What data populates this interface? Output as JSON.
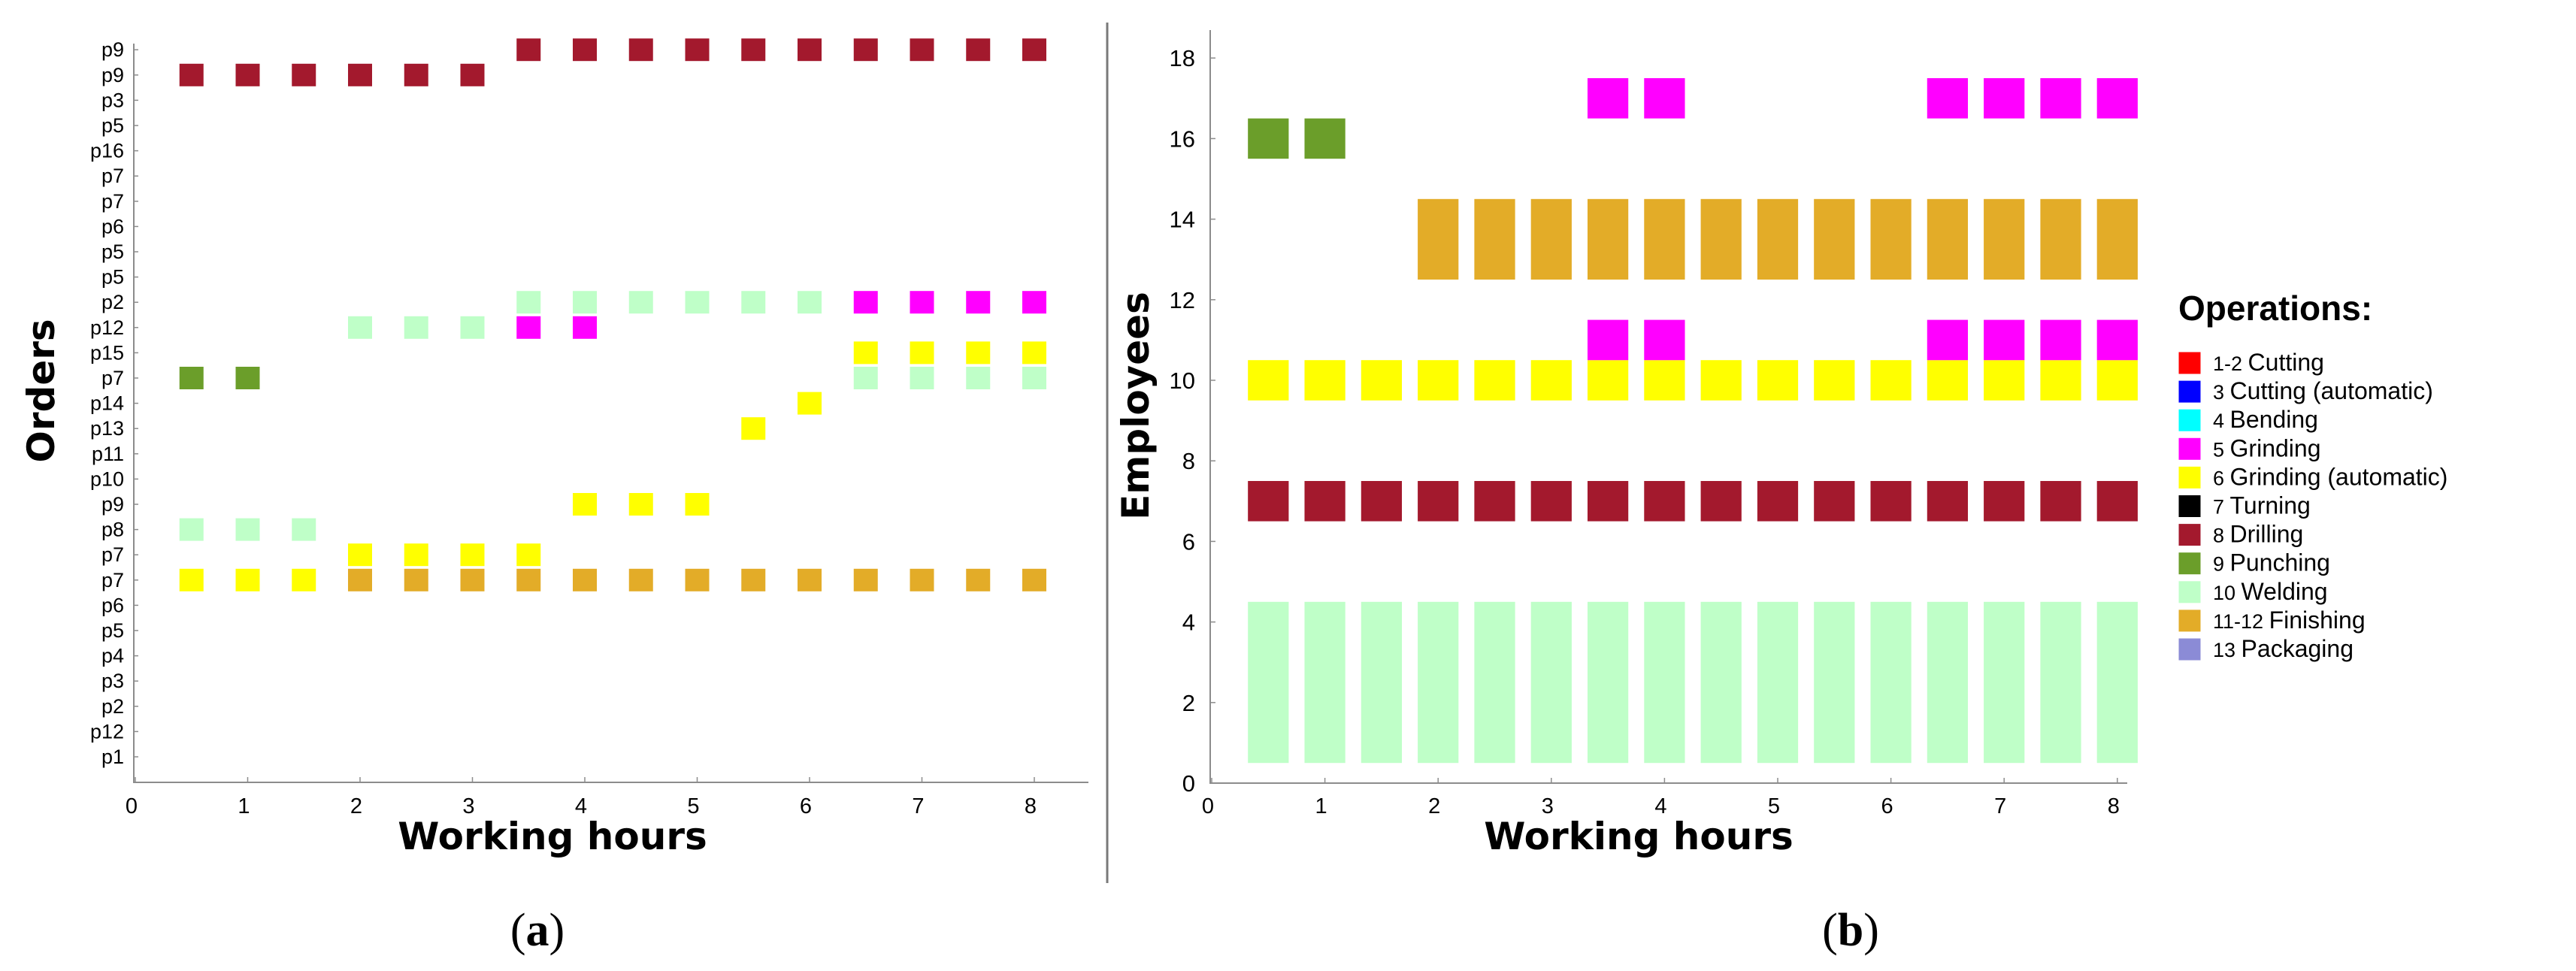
{
  "colors": {
    "cutting": "#ff0000",
    "cutting_auto": "#0000ff",
    "bending": "#00ffff",
    "grinding": "#ff00ff",
    "grinding_auto": "#ffff00",
    "turning": "#000000",
    "drilling": "#a3192d",
    "punching": "#6b9e2a",
    "welding": "#bfffc8",
    "finishing": "#e3ac28",
    "packaging": "#8b8bd6"
  },
  "legend": {
    "title": "Operations:",
    "items": [
      {
        "key": "cutting",
        "num": "1-2",
        "label": "Cutting"
      },
      {
        "key": "cutting_auto",
        "num": "3",
        "label": "Cutting (automatic)"
      },
      {
        "key": "bending",
        "num": "4",
        "label": "Bending"
      },
      {
        "key": "grinding",
        "num": "5",
        "label": "Grinding"
      },
      {
        "key": "grinding_auto",
        "num": "6",
        "label": "Grinding (automatic)"
      },
      {
        "key": "turning",
        "num": "7",
        "label": "Turning"
      },
      {
        "key": "drilling",
        "num": "8",
        "label": "Drilling"
      },
      {
        "key": "punching",
        "num": "9",
        "label": "Punching"
      },
      {
        "key": "welding",
        "num": "10",
        "label": "Welding"
      },
      {
        "key": "finishing",
        "num": "11-12",
        "label": "Finishing"
      },
      {
        "key": "packaging",
        "num": "13",
        "label": "Packaging"
      }
    ]
  },
  "chart_data": [
    {
      "type": "gantt",
      "panel_label": "a",
      "xlabel": "Working hours",
      "ylabel": "Orders",
      "xlim": [
        0,
        8.5
      ],
      "xticks": [
        0,
        1,
        2,
        3,
        4,
        5,
        6,
        7,
        8
      ],
      "yticks": [
        "p1",
        "p12",
        "p2",
        "p3",
        "p4",
        "p5",
        "p6",
        "p7",
        "p7",
        "p8",
        "p9",
        "p10",
        "p11",
        "p13",
        "p14",
        "p7",
        "p15",
        "p12",
        "p2",
        "p5",
        "p5",
        "p6",
        "p7",
        "p7",
        "p16",
        "p5",
        "p3",
        "p9",
        "p9"
      ],
      "points": [
        {
          "x": 0.5,
          "row": 27,
          "op": "drilling"
        },
        {
          "x": 1.0,
          "row": 27,
          "op": "drilling"
        },
        {
          "x": 1.5,
          "row": 27,
          "op": "drilling"
        },
        {
          "x": 2.0,
          "row": 27,
          "op": "drilling"
        },
        {
          "x": 2.5,
          "row": 27,
          "op": "drilling"
        },
        {
          "x": 3.0,
          "row": 27,
          "op": "drilling"
        },
        {
          "x": 3.5,
          "row": 28,
          "op": "drilling"
        },
        {
          "x": 4.0,
          "row": 28,
          "op": "drilling"
        },
        {
          "x": 4.5,
          "row": 28,
          "op": "drilling"
        },
        {
          "x": 5.0,
          "row": 28,
          "op": "drilling"
        },
        {
          "x": 5.5,
          "row": 28,
          "op": "drilling"
        },
        {
          "x": 6.0,
          "row": 28,
          "op": "drilling"
        },
        {
          "x": 6.5,
          "row": 28,
          "op": "drilling"
        },
        {
          "x": 7.0,
          "row": 28,
          "op": "drilling"
        },
        {
          "x": 7.5,
          "row": 28,
          "op": "drilling"
        },
        {
          "x": 8.0,
          "row": 28,
          "op": "drilling"
        },
        {
          "x": 3.5,
          "row": 18,
          "op": "welding"
        },
        {
          "x": 4.0,
          "row": 18,
          "op": "welding"
        },
        {
          "x": 4.5,
          "row": 18,
          "op": "welding"
        },
        {
          "x": 5.0,
          "row": 18,
          "op": "welding"
        },
        {
          "x": 5.5,
          "row": 18,
          "op": "welding"
        },
        {
          "x": 6.0,
          "row": 18,
          "op": "welding"
        },
        {
          "x": 6.5,
          "row": 18,
          "op": "grinding"
        },
        {
          "x": 7.0,
          "row": 18,
          "op": "grinding"
        },
        {
          "x": 7.5,
          "row": 18,
          "op": "grinding"
        },
        {
          "x": 8.0,
          "row": 18,
          "op": "grinding"
        },
        {
          "x": 2.0,
          "row": 17,
          "op": "welding"
        },
        {
          "x": 2.5,
          "row": 17,
          "op": "welding"
        },
        {
          "x": 3.0,
          "row": 17,
          "op": "welding"
        },
        {
          "x": 3.5,
          "row": 17,
          "op": "grinding"
        },
        {
          "x": 4.0,
          "row": 17,
          "op": "grinding"
        },
        {
          "x": 6.5,
          "row": 16,
          "op": "grinding_auto"
        },
        {
          "x": 7.0,
          "row": 16,
          "op": "grinding_auto"
        },
        {
          "x": 7.5,
          "row": 16,
          "op": "grinding_auto"
        },
        {
          "x": 8.0,
          "row": 16,
          "op": "grinding_auto"
        },
        {
          "x": 0.5,
          "row": 15,
          "op": "punching"
        },
        {
          "x": 1.0,
          "row": 15,
          "op": "punching"
        },
        {
          "x": 6.5,
          "row": 15,
          "op": "welding"
        },
        {
          "x": 7.0,
          "row": 15,
          "op": "welding"
        },
        {
          "x": 7.5,
          "row": 15,
          "op": "welding"
        },
        {
          "x": 8.0,
          "row": 15,
          "op": "welding"
        },
        {
          "x": 6.0,
          "row": 14,
          "op": "grinding_auto"
        },
        {
          "x": 5.5,
          "row": 13,
          "op": "grinding_auto"
        },
        {
          "x": 4.0,
          "row": 10,
          "op": "grinding_auto"
        },
        {
          "x": 4.5,
          "row": 10,
          "op": "grinding_auto"
        },
        {
          "x": 5.0,
          "row": 10,
          "op": "grinding_auto"
        },
        {
          "x": 0.5,
          "row": 9,
          "op": "welding"
        },
        {
          "x": 1.0,
          "row": 9,
          "op": "welding"
        },
        {
          "x": 1.5,
          "row": 9,
          "op": "welding"
        },
        {
          "x": 2.0,
          "row": 8,
          "op": "grinding_auto"
        },
        {
          "x": 2.5,
          "row": 8,
          "op": "grinding_auto"
        },
        {
          "x": 3.0,
          "row": 8,
          "op": "grinding_auto"
        },
        {
          "x": 3.5,
          "row": 8,
          "op": "grinding_auto"
        },
        {
          "x": 0.5,
          "row": 7,
          "op": "grinding_auto"
        },
        {
          "x": 1.0,
          "row": 7,
          "op": "grinding_auto"
        },
        {
          "x": 1.5,
          "row": 7,
          "op": "grinding_auto"
        },
        {
          "x": 2.0,
          "row": 7,
          "op": "finishing"
        },
        {
          "x": 2.5,
          "row": 7,
          "op": "finishing"
        },
        {
          "x": 3.0,
          "row": 7,
          "op": "finishing"
        },
        {
          "x": 3.5,
          "row": 7,
          "op": "finishing"
        },
        {
          "x": 4.0,
          "row": 7,
          "op": "finishing"
        },
        {
          "x": 4.5,
          "row": 7,
          "op": "finishing"
        },
        {
          "x": 5.0,
          "row": 7,
          "op": "finishing"
        },
        {
          "x": 5.5,
          "row": 7,
          "op": "finishing"
        },
        {
          "x": 6.0,
          "row": 7,
          "op": "finishing"
        },
        {
          "x": 6.5,
          "row": 7,
          "op": "finishing"
        },
        {
          "x": 7.0,
          "row": 7,
          "op": "finishing"
        },
        {
          "x": 7.5,
          "row": 7,
          "op": "finishing"
        },
        {
          "x": 8.0,
          "row": 7,
          "op": "finishing"
        }
      ]
    },
    {
      "type": "gantt",
      "panel_label": "b",
      "xlabel": "Working hours",
      "ylabel": "Employees",
      "xlim": [
        0,
        8.2
      ],
      "ylim": [
        0,
        19
      ],
      "xticks": [
        0,
        1,
        2,
        3,
        4,
        5,
        6,
        7,
        8
      ],
      "yticks": [
        0,
        2,
        4,
        6,
        8,
        10,
        12,
        14,
        16,
        18
      ],
      "bar_width": 0.4,
      "blocks": [
        {
          "op": "welding",
          "y0": 0.5,
          "y1": 4.5,
          "xs": [
            0.5,
            1.0,
            1.5,
            2.0,
            2.5,
            3.0,
            3.5,
            4.0,
            4.5,
            5.0,
            5.5,
            6.0,
            6.5,
            7.0,
            7.5,
            8.0
          ]
        },
        {
          "op": "drilling",
          "y0": 6.5,
          "y1": 7.5,
          "xs": [
            0.5,
            1.0,
            1.5,
            2.0,
            2.5,
            3.0,
            3.5,
            4.0,
            4.5,
            5.0,
            5.5,
            6.0,
            6.5,
            7.0,
            7.5,
            8.0
          ]
        },
        {
          "op": "grinding_auto",
          "y0": 9.5,
          "y1": 10.5,
          "xs": [
            0.5,
            1.0,
            1.5,
            2.0,
            2.5,
            3.0,
            3.5,
            4.0,
            4.5,
            5.0,
            5.5,
            6.0,
            6.5,
            7.0,
            7.5,
            8.0
          ]
        },
        {
          "op": "grinding",
          "y0": 10.5,
          "y1": 11.5,
          "xs": [
            3.5,
            4.0,
            6.5,
            7.0,
            7.5,
            8.0
          ]
        },
        {
          "op": "finishing",
          "y0": 12.5,
          "y1": 14.5,
          "xs": [
            2.0,
            2.5,
            3.0,
            3.5,
            4.0,
            4.5,
            5.0,
            5.5,
            6.0,
            6.5,
            7.0,
            7.5,
            8.0
          ]
        },
        {
          "op": "punching",
          "y0": 15.5,
          "y1": 16.5,
          "xs": [
            0.5,
            1.0
          ]
        },
        {
          "op": "grinding",
          "y0": 16.5,
          "y1": 17.5,
          "xs": [
            3.5,
            4.0,
            6.5,
            7.0,
            7.5,
            8.0
          ]
        }
      ]
    }
  ]
}
